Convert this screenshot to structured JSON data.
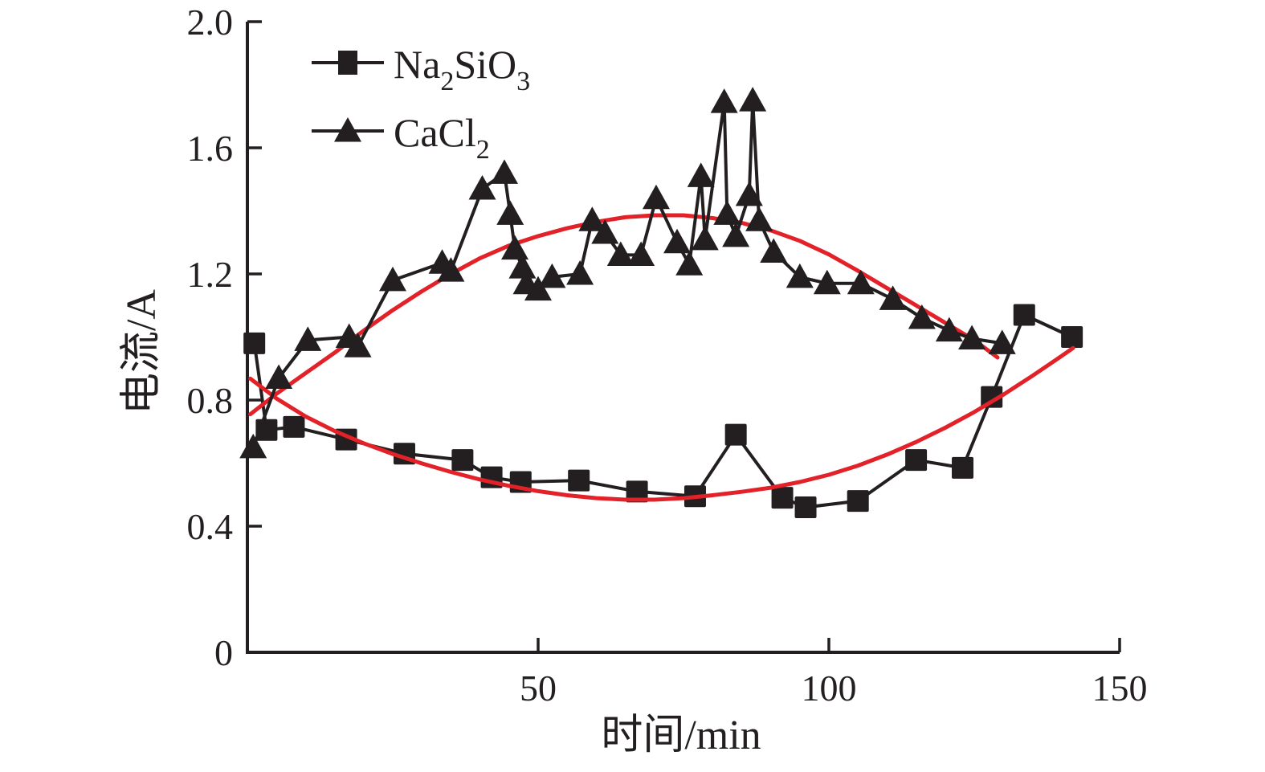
{
  "page": {
    "background": "#ffffff"
  },
  "chart_data": {
    "type": "scatter",
    "title": "",
    "xlabel": "时间/min",
    "ylabel": "电流/A",
    "xlim": [
      0,
      150
    ],
    "ylim": [
      0,
      2.0
    ],
    "xticks": [
      50,
      100,
      150
    ],
    "xtick_labels": [
      "50",
      "100",
      "150"
    ],
    "yticks": [
      0,
      0.4,
      0.8,
      1.2,
      1.6,
      2.0
    ],
    "ytick_labels": [
      "0",
      "0.4",
      "0.8",
      "1.2",
      "1.6",
      "2.0"
    ],
    "grid": false,
    "legend_position": "top-left-inside",
    "colors": {
      "axis": "#231f20",
      "series": "#231f20",
      "fit_curve": "#e22128",
      "background": "#ffffff"
    },
    "series": [
      {
        "name": "Na2SiO3",
        "rich_label": [
          [
            "Na",
            false
          ],
          [
            "2",
            true
          ],
          [
            "SiO",
            false
          ],
          [
            "3",
            true
          ]
        ],
        "marker": "square",
        "color": "#231f20",
        "points": [
          [
            1.2,
            0.98
          ],
          [
            3.3,
            0.705
          ],
          [
            8,
            0.715
          ],
          [
            17,
            0.675
          ],
          [
            27,
            0.63
          ],
          [
            37,
            0.61
          ],
          [
            42,
            0.555
          ],
          [
            47,
            0.54
          ],
          [
            57,
            0.545
          ],
          [
            67,
            0.51
          ],
          [
            77,
            0.495
          ],
          [
            84,
            0.69
          ],
          [
            92,
            0.49
          ],
          [
            96,
            0.46
          ],
          [
            105,
            0.48
          ],
          [
            115,
            0.61
          ],
          [
            123,
            0.585
          ],
          [
            128,
            0.81
          ],
          [
            133.6,
            1.07
          ],
          [
            141.8,
            1.0
          ]
        ]
      },
      {
        "name": "CaCl2",
        "rich_label": [
          [
            "CaCl",
            false
          ],
          [
            "2",
            true
          ]
        ],
        "marker": "triangle",
        "color": "#231f20",
        "points": [
          [
            1,
            0.65
          ],
          [
            5.4,
            0.87
          ],
          [
            10.4,
            0.99
          ],
          [
            17.5,
            1.0
          ],
          [
            19,
            0.97
          ],
          [
            25,
            1.18
          ],
          [
            33.5,
            1.235
          ],
          [
            35,
            1.21
          ],
          [
            40.4,
            1.47
          ],
          [
            44.2,
            1.52
          ],
          [
            45.2,
            1.39
          ],
          [
            46,
            1.28
          ],
          [
            47.3,
            1.22
          ],
          [
            48,
            1.17
          ],
          [
            50,
            1.15
          ],
          [
            52.4,
            1.19
          ],
          [
            57.2,
            1.2
          ],
          [
            59.3,
            1.37
          ],
          [
            61.5,
            1.33
          ],
          [
            64.2,
            1.26
          ],
          [
            67.7,
            1.26
          ],
          [
            70.3,
            1.44
          ],
          [
            73.9,
            1.3
          ],
          [
            76,
            1.23
          ],
          [
            78,
            1.51
          ],
          [
            78.7,
            1.31
          ],
          [
            82,
            1.745
          ],
          [
            82.5,
            1.39
          ],
          [
            84,
            1.32
          ],
          [
            86.3,
            1.45
          ],
          [
            86.9,
            1.75
          ],
          [
            88,
            1.37
          ],
          [
            90.5,
            1.27
          ],
          [
            95,
            1.19
          ],
          [
            99.7,
            1.17
          ],
          [
            105.5,
            1.17
          ],
          [
            111,
            1.12
          ],
          [
            116,
            1.06
          ],
          [
            120.7,
            1.02
          ],
          [
            124.6,
            0.995
          ],
          [
            129.8,
            0.98
          ]
        ]
      }
    ],
    "fit_curves": [
      {
        "for": "Na2SiO3",
        "shape": "downward-then-upward arc (U shape)",
        "color": "#e22128",
        "points": [
          [
            0.5,
            0.868
          ],
          [
            5,
            0.805
          ],
          [
            10,
            0.748
          ],
          [
            15,
            0.702
          ],
          [
            20,
            0.663
          ],
          [
            25,
            0.629
          ],
          [
            30,
            0.599
          ],
          [
            35,
            0.572
          ],
          [
            40,
            0.548
          ],
          [
            45,
            0.528
          ],
          [
            50,
            0.511
          ],
          [
            55,
            0.498
          ],
          [
            60,
            0.489
          ],
          [
            65,
            0.484
          ],
          [
            70,
            0.484
          ],
          [
            75,
            0.489
          ],
          [
            80,
            0.498
          ],
          [
            85,
            0.509
          ],
          [
            90,
            0.522
          ],
          [
            95,
            0.54
          ],
          [
            100,
            0.563
          ],
          [
            105,
            0.592
          ],
          [
            110,
            0.627
          ],
          [
            115,
            0.667
          ],
          [
            120,
            0.712
          ],
          [
            125,
            0.762
          ],
          [
            130,
            0.817
          ],
          [
            135,
            0.877
          ],
          [
            139,
            0.927
          ],
          [
            142,
            0.965
          ]
        ]
      },
      {
        "for": "CaCl2",
        "shape": "upward arch (inverted U)",
        "color": "#e22128",
        "points": [
          [
            0.5,
            0.755
          ],
          [
            5,
            0.82
          ],
          [
            10,
            0.885
          ],
          [
            15,
            0.95
          ],
          [
            20,
            1.02
          ],
          [
            25,
            1.085
          ],
          [
            30,
            1.145
          ],
          [
            35,
            1.2
          ],
          [
            40,
            1.25
          ],
          [
            45,
            1.29
          ],
          [
            50,
            1.32
          ],
          [
            55,
            1.345
          ],
          [
            60,
            1.365
          ],
          [
            65,
            1.38
          ],
          [
            70,
            1.386
          ],
          [
            75,
            1.386
          ],
          [
            80,
            1.377
          ],
          [
            85,
            1.362
          ],
          [
            90,
            1.338
          ],
          [
            95,
            1.305
          ],
          [
            100,
            1.262
          ],
          [
            105,
            1.21
          ],
          [
            110,
            1.155
          ],
          [
            115,
            1.1
          ],
          [
            120,
            1.045
          ],
          [
            125,
            0.99
          ],
          [
            129,
            0.935
          ]
        ]
      }
    ]
  }
}
